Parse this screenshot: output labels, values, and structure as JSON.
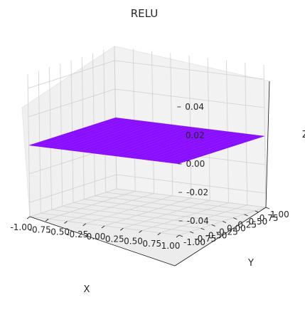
{
  "chart_data": {
    "type": "surface",
    "title": "RELU",
    "xlabel": "X",
    "ylabel": "Y",
    "zlabel": "Z",
    "xlim": [
      -1.0,
      1.0
    ],
    "ylim": [
      -1.0,
      1.0
    ],
    "zlim": [
      -0.05,
      0.05
    ],
    "x_ticks": [
      "-1.00",
      "-0.75",
      "-0.50",
      "-0.25",
      "0.00",
      "0.25",
      "0.50",
      "0.75",
      "1.00"
    ],
    "y_ticks": [
      "-1.00",
      "-0.75",
      "-0.50",
      "-0.25",
      "0.00",
      "0.25",
      "0.50",
      "0.75",
      "1.00"
    ],
    "z_ticks": [
      "0.04",
      "0.02",
      "0.00",
      "-0.02",
      "-0.04"
    ],
    "surface": {
      "x_range": [
        -1.0,
        1.0
      ],
      "y_range": [
        -1.0,
        1.0
      ],
      "z_value": 0.0,
      "color": "#8000ff"
    },
    "grid": true
  }
}
